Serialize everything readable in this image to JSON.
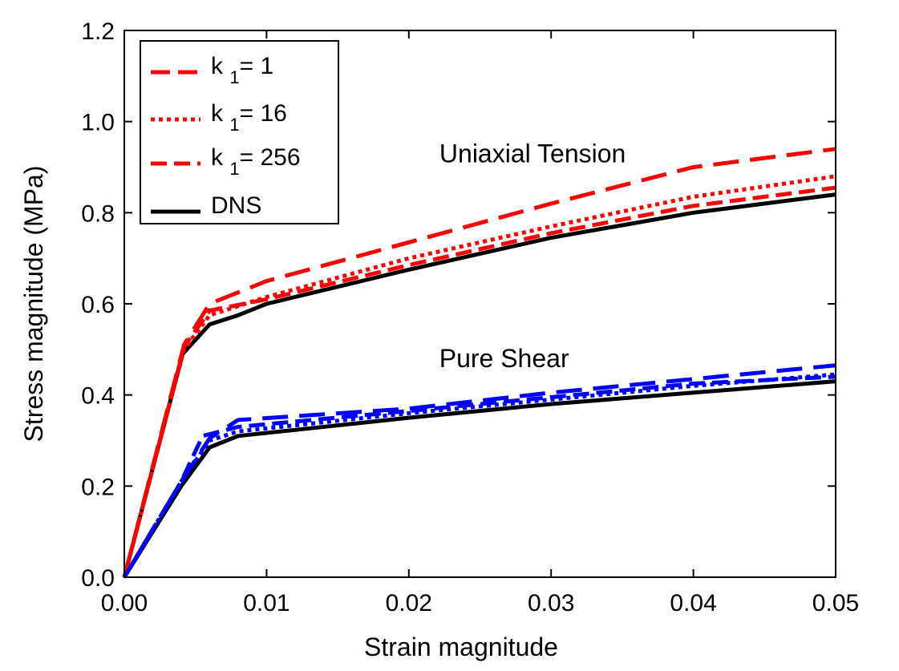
{
  "chart_data": {
    "type": "line",
    "xlabel": "Strain magnitude",
    "ylabel": "Stress magnitude (MPa)",
    "xlim": [
      0,
      0.05
    ],
    "ylim": [
      0,
      1.2
    ],
    "xticks": [
      "0.00",
      "0.01",
      "0.02",
      "0.03",
      "0.04",
      "0.05"
    ],
    "yticks": [
      "0.0",
      "0.2",
      "0.4",
      "0.6",
      "0.8",
      "1.0",
      "1.2"
    ],
    "grid": false,
    "legend_position": "top-left",
    "legend": [
      {
        "prefix": "k",
        "sub": "1",
        "suffix": "= 1",
        "color": "#ff0000",
        "dash": "long-dash"
      },
      {
        "prefix": "k",
        "sub": "1",
        "suffix": "= 16",
        "color": "#ff0000",
        "dash": "dotted"
      },
      {
        "prefix": "k",
        "sub": "1",
        "suffix": "= 256",
        "color": "#ff0000",
        "dash": "dash"
      },
      {
        "prefix": "",
        "sub": "",
        "suffix": "DNS",
        "color": "#000000",
        "dash": "solid"
      }
    ],
    "annotations": [
      {
        "text": "Uniaxial Tension",
        "x": 0.0287,
        "y": 0.93
      },
      {
        "text": "Pure Shear",
        "x": 0.0267,
        "y": 0.48
      }
    ],
    "series": [
      {
        "group": "Uniaxial Tension",
        "legend_index": 0,
        "color": "#ff0000",
        "dash": "long-dash",
        "points": [
          [
            0,
            0
          ],
          [
            0.0042,
            0.51
          ],
          [
            0.006,
            0.6
          ],
          [
            0.01,
            0.65
          ],
          [
            0.02,
            0.735
          ],
          [
            0.03,
            0.82
          ],
          [
            0.04,
            0.9
          ],
          [
            0.05,
            0.94
          ]
        ]
      },
      {
        "group": "Uniaxial Tension",
        "legend_index": 1,
        "color": "#ff0000",
        "dash": "dotted",
        "points": [
          [
            0,
            0
          ],
          [
            0.0042,
            0.5
          ],
          [
            0.006,
            0.575
          ],
          [
            0.01,
            0.615
          ],
          [
            0.02,
            0.7
          ],
          [
            0.03,
            0.77
          ],
          [
            0.04,
            0.835
          ],
          [
            0.05,
            0.88
          ]
        ]
      },
      {
        "group": "Uniaxial Tension",
        "legend_index": 2,
        "color": "#ff0000",
        "dash": "dash",
        "points": [
          [
            0,
            0
          ],
          [
            0.0042,
            0.505
          ],
          [
            0.006,
            0.585
          ],
          [
            0.01,
            0.61
          ],
          [
            0.02,
            0.685
          ],
          [
            0.03,
            0.755
          ],
          [
            0.04,
            0.815
          ],
          [
            0.05,
            0.855
          ]
        ]
      },
      {
        "group": "Uniaxial Tension",
        "legend_index": 3,
        "color": "#000000",
        "dash": "solid",
        "points": [
          [
            0,
            0
          ],
          [
            0.0041,
            0.49
          ],
          [
            0.006,
            0.555
          ],
          [
            0.008,
            0.575
          ],
          [
            0.01,
            0.6
          ],
          [
            0.02,
            0.675
          ],
          [
            0.03,
            0.745
          ],
          [
            0.04,
            0.8
          ],
          [
            0.05,
            0.84
          ]
        ]
      },
      {
        "group": "Pure Shear",
        "legend_index": 0,
        "color": "#0000ff",
        "dash": "long-dash",
        "points": [
          [
            0,
            0
          ],
          [
            0.004,
            0.21
          ],
          [
            0.006,
            0.305
          ],
          [
            0.008,
            0.345
          ],
          [
            0.02,
            0.37
          ],
          [
            0.03,
            0.405
          ],
          [
            0.04,
            0.435
          ],
          [
            0.05,
            0.465
          ]
        ]
      },
      {
        "group": "Pure Shear",
        "legend_index": 1,
        "color": "#0000ff",
        "dash": "dotted",
        "points": [
          [
            0,
            0
          ],
          [
            0.004,
            0.21
          ],
          [
            0.006,
            0.3
          ],
          [
            0.008,
            0.32
          ],
          [
            0.02,
            0.36
          ],
          [
            0.03,
            0.39
          ],
          [
            0.04,
            0.42
          ],
          [
            0.05,
            0.445
          ]
        ]
      },
      {
        "group": "Pure Shear",
        "legend_index": 2,
        "color": "#0000ff",
        "dash": "dash",
        "points": [
          [
            0,
            0
          ],
          [
            0.004,
            0.21
          ],
          [
            0.0055,
            0.31
          ],
          [
            0.008,
            0.33
          ],
          [
            0.02,
            0.365
          ],
          [
            0.03,
            0.395
          ],
          [
            0.04,
            0.425
          ],
          [
            0.05,
            0.44
          ]
        ]
      },
      {
        "group": "Pure Shear",
        "legend_index": 3,
        "color": "#000000",
        "dash": "solid",
        "points": [
          [
            0,
            0
          ],
          [
            0.004,
            0.2
          ],
          [
            0.006,
            0.285
          ],
          [
            0.008,
            0.31
          ],
          [
            0.02,
            0.35
          ],
          [
            0.03,
            0.38
          ],
          [
            0.04,
            0.405
          ],
          [
            0.05,
            0.43
          ]
        ]
      }
    ]
  }
}
